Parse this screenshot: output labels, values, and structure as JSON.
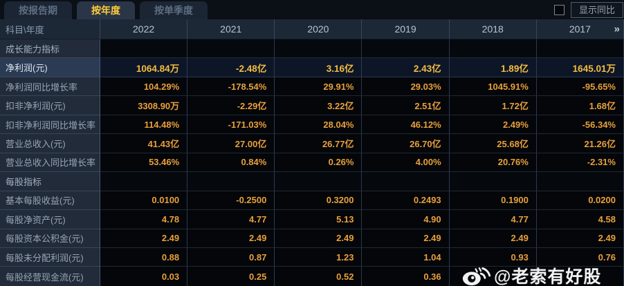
{
  "tabs": [
    {
      "label": "按报告期",
      "active": false
    },
    {
      "label": "按年度",
      "active": true
    },
    {
      "label": "按单季度",
      "active": false
    }
  ],
  "controls": {
    "show_yoy_checkbox_checked": false,
    "show_yoy_label": "显示同比"
  },
  "table": {
    "corner_header": "科目\\年度",
    "year_columns": [
      "2022",
      "2021",
      "2020",
      "2019",
      "2018",
      "2017"
    ],
    "more_columns_icon": "»",
    "rows": [
      {
        "type": "section",
        "highlight": false,
        "label": "成长能力指标",
        "values": [
          "",
          "",
          "",
          "",
          "",
          ""
        ]
      },
      {
        "type": "data",
        "highlight": true,
        "label": "净利润(元)",
        "values": [
          "1064.84万",
          "-2.48亿",
          "3.16亿",
          "2.43亿",
          "1.89亿",
          "1645.01万"
        ]
      },
      {
        "type": "data",
        "highlight": false,
        "label": "净利润同比增长率",
        "values": [
          "104.29%",
          "-178.54%",
          "29.91%",
          "29.03%",
          "1045.91%",
          "-95.65%"
        ]
      },
      {
        "type": "data",
        "highlight": false,
        "label": "扣非净利润(元)",
        "values": [
          "3308.90万",
          "-2.29亿",
          "3.22亿",
          "2.51亿",
          "1.72亿",
          "1.68亿"
        ]
      },
      {
        "type": "data",
        "highlight": false,
        "label": "扣非净利润同比增长率",
        "values": [
          "114.48%",
          "-171.03%",
          "28.04%",
          "46.12%",
          "2.49%",
          "-56.34%"
        ]
      },
      {
        "type": "data",
        "highlight": false,
        "label": "营业总收入(元)",
        "values": [
          "41.43亿",
          "27.00亿",
          "26.77亿",
          "26.70亿",
          "25.68亿",
          "21.26亿"
        ]
      },
      {
        "type": "data",
        "highlight": false,
        "label": "营业总收入同比增长率",
        "values": [
          "53.46%",
          "0.84%",
          "0.26%",
          "4.00%",
          "20.76%",
          "-2.31%"
        ]
      },
      {
        "type": "section",
        "highlight": false,
        "label": "每股指标",
        "values": [
          "",
          "",
          "",
          "",
          "",
          ""
        ]
      },
      {
        "type": "data",
        "highlight": false,
        "label": "基本每股收益(元)",
        "values": [
          "0.0100",
          "-0.2500",
          "0.3200",
          "0.2493",
          "0.1900",
          "0.0200"
        ]
      },
      {
        "type": "data",
        "highlight": false,
        "label": "每股净资产(元)",
        "values": [
          "4.78",
          "4.77",
          "5.13",
          "4.90",
          "4.77",
          "4.58"
        ]
      },
      {
        "type": "data",
        "highlight": false,
        "label": "每股资本公积金(元)",
        "values": [
          "2.49",
          "2.49",
          "2.49",
          "2.49",
          "2.49",
          "2.49"
        ]
      },
      {
        "type": "data",
        "highlight": false,
        "label": "每股未分配利润(元)",
        "values": [
          "0.88",
          "0.87",
          "1.23",
          "1.04",
          "0.93",
          "0.76"
        ]
      },
      {
        "type": "data",
        "highlight": false,
        "label": "每股经营现金流(元)",
        "values": [
          "0.03",
          "0.25",
          "0.52",
          "0.36",
          "",
          ""
        ]
      }
    ]
  },
  "watermark": {
    "text": "@老索有好股",
    "icon": "weibo-icon"
  },
  "colors": {
    "value_text": "#e9a03c",
    "highlight_value_text": "#f4bd41",
    "active_tab_text": "#ffce3a",
    "header_text": "#b9c5d4",
    "label_text": "#97a5b7"
  }
}
